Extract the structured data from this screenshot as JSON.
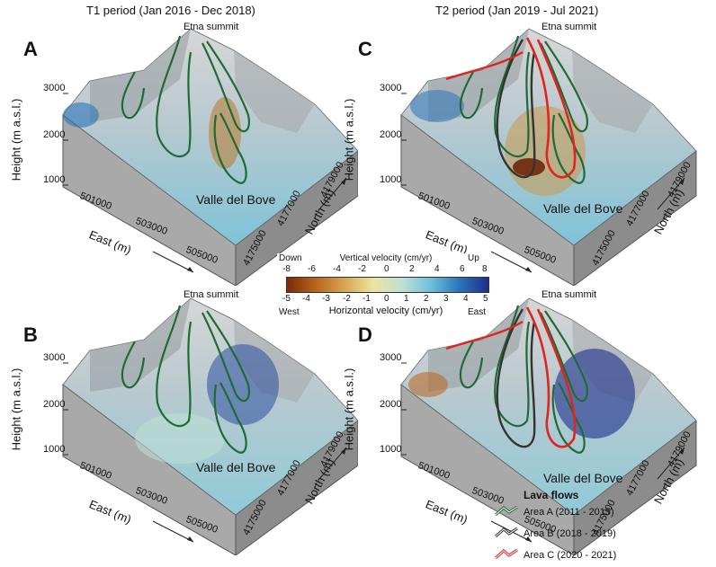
{
  "columns": {
    "left_title": "T1 period (Jan 2016 - Dec 2018)",
    "right_title": "T2 period (Jan 2019 - Jul 2021)"
  },
  "panels": [
    {
      "letter": "A",
      "summit": "Etna summit",
      "valley": "Valle del Bove",
      "has_red_flow": false,
      "velocity": "vertical-t1"
    },
    {
      "letter": "C",
      "summit": "Etna summit",
      "valley": "Valle del Bove",
      "has_red_flow": true,
      "velocity": "vertical-t2"
    },
    {
      "letter": "B",
      "summit": "Etna summit",
      "valley": "Valle del Bove",
      "has_red_flow": false,
      "velocity": "horizontal-t1"
    },
    {
      "letter": "D",
      "summit": "Etna summit",
      "valley": "Valle del Bove",
      "has_red_flow": true,
      "velocity": "horizontal-t2"
    }
  ],
  "axes": {
    "height_title": "Height (m a.s.l.)",
    "height_ticks": [
      "3000",
      "2000",
      "1000"
    ],
    "east_title": "East (m)",
    "east_ticks": [
      "501000",
      "503000",
      "505000"
    ],
    "north_title": "North (m)",
    "north_ticks": [
      "4179000",
      "4177000",
      "4175000"
    ]
  },
  "colorbar": {
    "vertical_title": "Vertical velocity (cm/yr)",
    "vertical_ticks": [
      "-8",
      "-6",
      "-4",
      "-2",
      "0",
      "2",
      "4",
      "6",
      "8"
    ],
    "horizontal_title": "Horizontal velocity (cm/yr)",
    "horizontal_ticks": [
      "-5",
      "-4",
      "-3",
      "-2",
      "-1",
      "0",
      "1",
      "2",
      "3",
      "4",
      "5"
    ],
    "down_label": "Down",
    "up_label": "Up",
    "west_label": "West",
    "east_label": "East",
    "colors": [
      "#7a2a05",
      "#b8651c",
      "#d9a552",
      "#ece4a0",
      "#bfe0d4",
      "#6fc0dc",
      "#2b73b8",
      "#1b2f8c"
    ]
  },
  "legend": {
    "title": "Lava flows",
    "items": [
      {
        "label": "Area A (2011 - 2015)",
        "color": "#1f6b34"
      },
      {
        "label": "Area B (2018 - 2019)",
        "color": "#333333"
      },
      {
        "label": "Area C (2020 - 2021)",
        "color": "#e0241f"
      }
    ]
  }
}
